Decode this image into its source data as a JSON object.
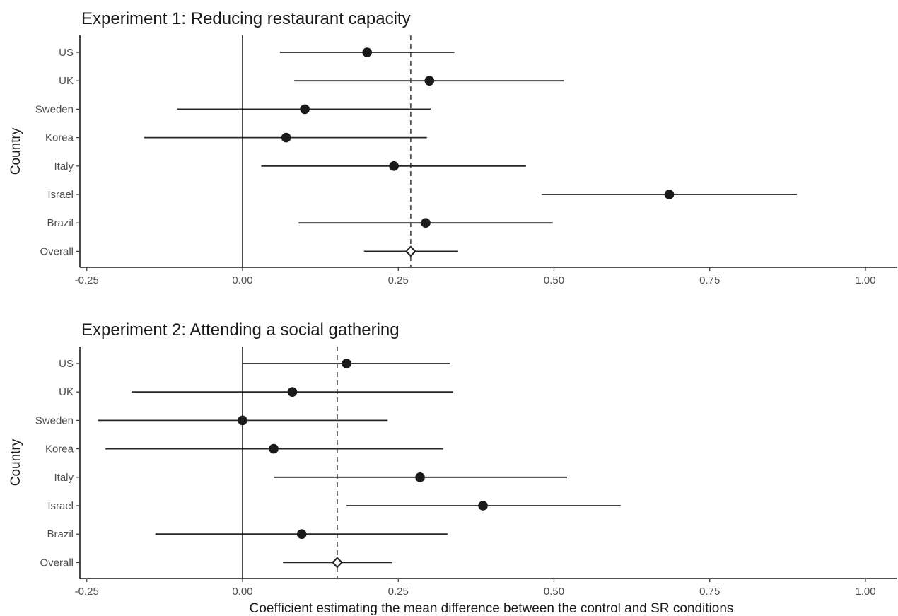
{
  "chart_data": [
    {
      "type": "scatter",
      "title": "Experiment 1: Reducing restaurant capacity",
      "ylabel": "Country",
      "xlabel": "",
      "xlim": [
        -0.27,
        1.05
      ],
      "x_ticks": [
        -0.25,
        0.0,
        0.25,
        0.5,
        0.75,
        1.0
      ],
      "x_tick_labels": [
        "-0.25",
        "0.00",
        "0.25",
        "0.50",
        "0.75",
        "1.00"
      ],
      "categories": [
        "US",
        "UK",
        "Sweden",
        "Korea",
        "Italy",
        "Israel",
        "Brazil",
        "Overall"
      ],
      "estimates": [
        0.2,
        0.3,
        0.1,
        0.07,
        0.243,
        0.685,
        0.294,
        0.27
      ],
      "ci_lower": [
        0.06,
        0.083,
        -0.105,
        -0.158,
        0.03,
        0.48,
        0.09,
        0.195
      ],
      "ci_upper": [
        0.34,
        0.516,
        0.302,
        0.296,
        0.455,
        0.89,
        0.498,
        0.346
      ],
      "overall_marker": "diamond",
      "reference_line": 0.27,
      "zero_line": 0.0,
      "grid": false
    },
    {
      "type": "scatter",
      "title": "Experiment 2: Attending a social gathering",
      "ylabel": "Country",
      "xlabel": "Coefficient estimating the mean difference between the control and SR conditions",
      "xlim": [
        -0.27,
        1.05
      ],
      "x_ticks": [
        -0.25,
        0.0,
        0.25,
        0.5,
        0.75,
        1.0
      ],
      "x_tick_labels": [
        "-0.25",
        "0.00",
        "0.25",
        "0.50",
        "0.75",
        "1.00"
      ],
      "categories": [
        "US",
        "UK",
        "Sweden",
        "Korea",
        "Italy",
        "Israel",
        "Brazil",
        "Overall"
      ],
      "estimates": [
        0.167,
        0.08,
        0.0,
        0.05,
        0.285,
        0.386,
        0.095,
        0.152
      ],
      "ci_lower": [
        0.0,
        -0.178,
        -0.232,
        -0.22,
        0.05,
        0.167,
        -0.14,
        0.065
      ],
      "ci_upper": [
        0.333,
        0.338,
        0.233,
        0.322,
        0.521,
        0.607,
        0.329,
        0.24
      ],
      "overall_marker": "diamond",
      "reference_line": 0.152,
      "zero_line": 0.0,
      "grid": false
    }
  ]
}
